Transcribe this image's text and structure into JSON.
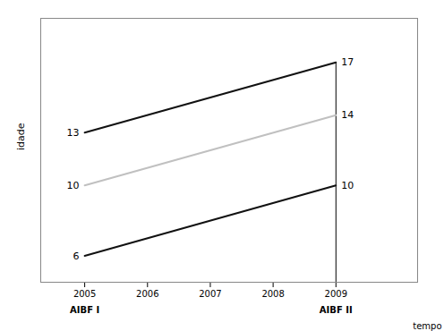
{
  "chart_data": {
    "type": "line",
    "x": [
      2005,
      2009
    ],
    "series": [
      {
        "color": "#111111",
        "values": [
          13,
          17
        ]
      },
      {
        "color": "#c0c0c0",
        "values": [
          10,
          14
        ]
      },
      {
        "color": "#111111",
        "values": [
          6,
          10
        ]
      }
    ],
    "xlabel": "tempo",
    "ylabel": "idade",
    "xlim": [
      2004.3,
      2010.3
    ],
    "xticks": [
      2005,
      2006,
      2007,
      2008,
      2009
    ],
    "ylim": [
      4.5,
      19.5
    ],
    "tick_labels": "x",
    "data_labels": true,
    "annotations": [
      {
        "x": 2005,
        "text": "AIBF I"
      },
      {
        "x": 2009,
        "text": "AIBF II"
      }
    ],
    "reference_line": {
      "x": 2009,
      "y_end": 17
    }
  }
}
